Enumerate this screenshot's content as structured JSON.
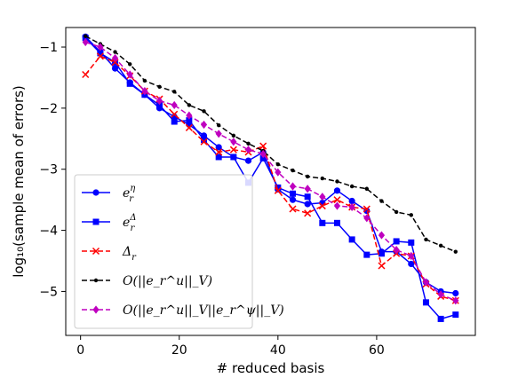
{
  "chart_data": {
    "type": "line",
    "xlabel": "# reduced basis",
    "ylabel": "log₁₀(sample mean of errors)",
    "xlim": [
      -3,
      80
    ],
    "ylim": [
      -5.72,
      -0.68
    ],
    "xticks": [
      0,
      20,
      40,
      60
    ],
    "yticks": [
      -1,
      -2,
      -3,
      -4,
      -5
    ],
    "xtick_labels": [
      "0",
      "20",
      "40",
      "60"
    ],
    "ytick_labels": [
      "−1",
      "−2",
      "−3",
      "−4",
      "−5"
    ],
    "legend_position": "lower-left",
    "grid": false,
    "x": [
      1,
      4,
      7,
      10,
      13,
      16,
      19,
      22,
      25,
      28,
      31,
      34,
      37,
      40,
      43,
      46,
      49,
      52,
      55,
      58,
      61,
      64,
      67,
      70,
      73,
      76
    ],
    "series": [
      {
        "name": "e_r^η",
        "label_main": "e",
        "label_sub": "r",
        "label_sup": "η",
        "color": "#0000ff",
        "marker": "circle",
        "dash": "solid",
        "values": [
          -0.83,
          -1.08,
          -1.35,
          -1.58,
          -1.78,
          -2.0,
          -2.14,
          -2.27,
          -2.45,
          -2.64,
          -2.8,
          -2.86,
          -2.72,
          -3.33,
          -3.5,
          -3.57,
          -3.55,
          -3.35,
          -3.52,
          -3.68,
          -4.35,
          -4.35,
          -4.55,
          -4.85,
          -5.0,
          -5.03
        ]
      },
      {
        "name": "e_r^Δ",
        "label_main": "e",
        "label_sub": "r",
        "label_sup": "Δ",
        "color": "#0000ff",
        "marker": "square",
        "dash": "solid",
        "values": [
          -0.85,
          -1.1,
          -1.25,
          -1.6,
          -1.78,
          -1.95,
          -2.22,
          -2.2,
          -2.52,
          -2.8,
          -2.8,
          -3.22,
          -2.82,
          -3.3,
          -3.4,
          -3.45,
          -3.88,
          -3.88,
          -4.15,
          -4.4,
          -4.38,
          -4.18,
          -4.2,
          -5.18,
          -5.45,
          -5.38
        ]
      },
      {
        "name": "Δ_r",
        "label_main": "Δ",
        "label_sub": "r",
        "label_sup": "",
        "color": "#ff0000",
        "marker": "x",
        "dash": "dashed",
        "values": [
          -1.45,
          -1.15,
          -1.25,
          -1.47,
          -1.72,
          -1.85,
          -2.1,
          -2.32,
          -2.55,
          -2.72,
          -2.68,
          -2.72,
          -2.62,
          -3.35,
          -3.65,
          -3.72,
          -3.6,
          -3.5,
          -3.62,
          -3.65,
          -4.58,
          -4.38,
          -4.42,
          -4.88,
          -5.08,
          -5.15
        ]
      },
      {
        "name": "O(||e_r^u||_V)",
        "color": "#000000",
        "marker": "dot",
        "dash": "dashed",
        "values": [
          -0.82,
          -0.95,
          -1.08,
          -1.28,
          -1.55,
          -1.65,
          -1.73,
          -1.95,
          -2.05,
          -2.28,
          -2.45,
          -2.58,
          -2.7,
          -2.92,
          -3.02,
          -3.12,
          -3.15,
          -3.2,
          -3.28,
          -3.32,
          -3.52,
          -3.7,
          -3.75,
          -4.15,
          -4.25,
          -4.35
        ]
      },
      {
        "name": "O(||e_r^u||_V||e_r^ψ||_V)",
        "color": "#bf00bf",
        "marker": "diamond",
        "dash": "dashed",
        "values": [
          -0.92,
          -1.0,
          -1.18,
          -1.45,
          -1.72,
          -1.88,
          -1.95,
          -2.12,
          -2.27,
          -2.42,
          -2.55,
          -2.68,
          -2.75,
          -3.05,
          -3.28,
          -3.32,
          -3.45,
          -3.6,
          -3.62,
          -3.8,
          -4.08,
          -4.32,
          -4.42,
          -4.85,
          -5.05,
          -5.15
        ]
      }
    ]
  }
}
